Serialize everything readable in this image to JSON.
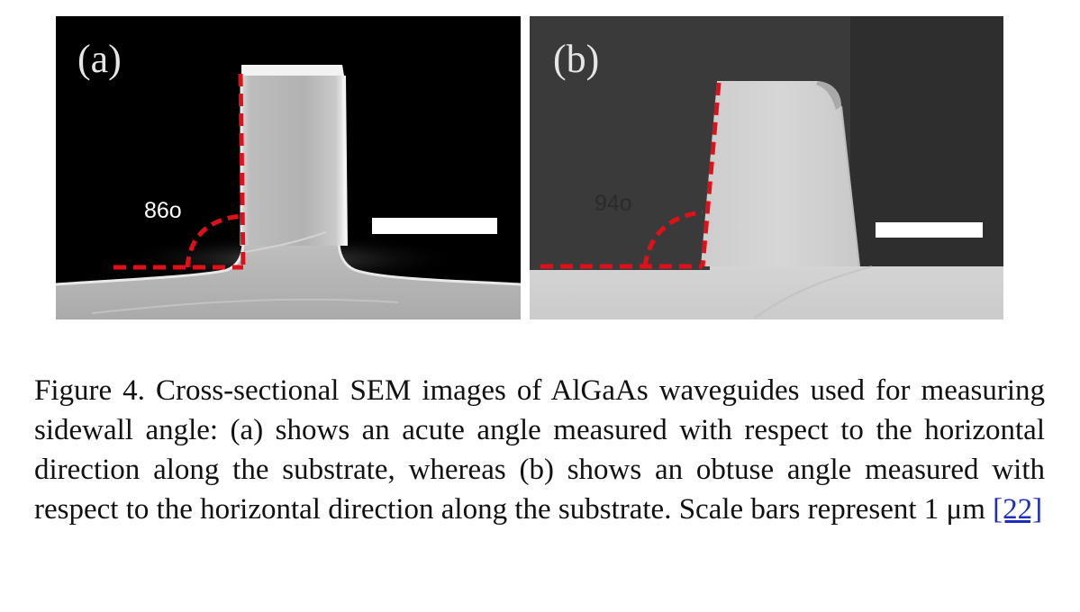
{
  "figure": {
    "panels": [
      {
        "label": "(a)",
        "angle": "86o"
      },
      {
        "label": "(b)",
        "angle": "94o"
      }
    ],
    "caption": {
      "text": "Figure 4. Cross-sectional SEM images of AlGaAs waveguides used for measuring sidewall angle: (a) shows an acute angle measured with respect to the horizontal direction along the substrate, whereas (b) shows an obtuse angle measured with respect to the horizontal direction along the substrate.  Scale bars represent 1 μm",
      "reference": "[22]"
    },
    "colors": {
      "dashed_line": "#e0101a",
      "scale_bar": "#ffffff",
      "link": "#1f2dbf"
    }
  }
}
